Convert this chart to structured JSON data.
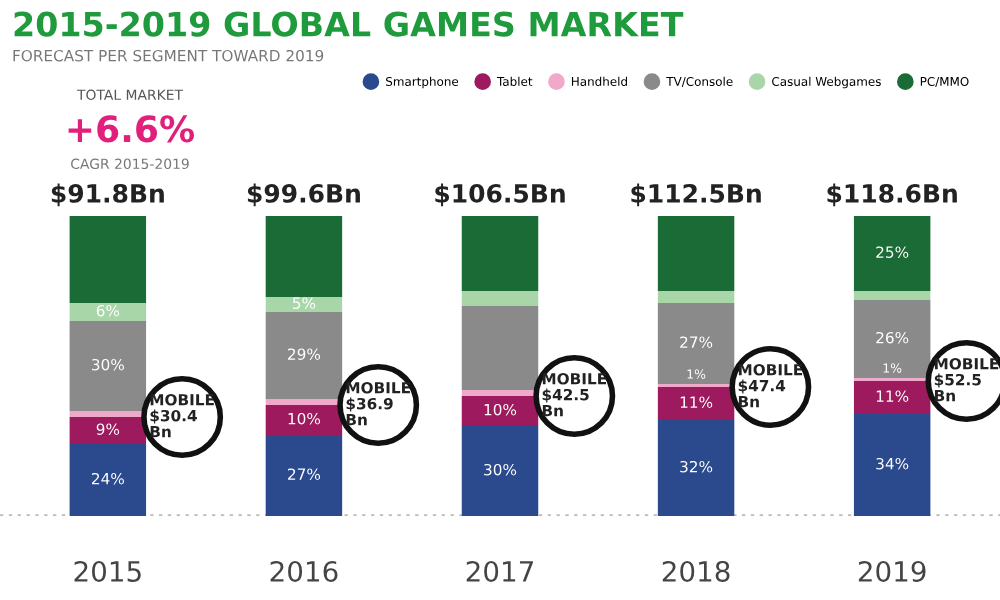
{
  "chart_data": {
    "type": "bar",
    "stacked": true,
    "title": "2015-2019 GLOBAL GAMES MARKET",
    "subtitle": "FORECAST PER SEGMENT TOWARD 2019",
    "categories": [
      "2015",
      "2016",
      "2017",
      "2018",
      "2019"
    ],
    "series": [
      {
        "name": "Smartphone",
        "color": "#2b4a8e",
        "values": [
          24,
          27,
          30,
          32,
          34
        ],
        "value_labels": [
          "24%",
          "27%",
          "30%",
          "32%",
          "34%"
        ]
      },
      {
        "name": "Tablet",
        "color": "#9e1a5e",
        "values": [
          9,
          10,
          10,
          11,
          11
        ],
        "value_labels": [
          "9%",
          "10%",
          "10%",
          "11%",
          "11%"
        ]
      },
      {
        "name": "Handheld",
        "color": "#f1a9c9",
        "values": [
          2,
          2,
          2,
          1,
          1
        ],
        "value_labels": [
          null,
          null,
          null,
          "1%",
          "1%"
        ]
      },
      {
        "name": "TV/Console",
        "color": "#8a8a8a",
        "values": [
          30,
          29,
          28,
          27,
          26
        ],
        "value_labels": [
          "30%",
          "29%",
          null,
          "27%",
          "26%"
        ]
      },
      {
        "name": "Casual Webgames",
        "color": "#a9d6a9",
        "values": [
          6,
          5,
          5,
          4,
          3
        ],
        "value_labels": [
          "6%",
          "5%",
          null,
          null,
          null
        ]
      },
      {
        "name": "PC/MMO",
        "color": "#1b6b37",
        "values": [
          29,
          27,
          25,
          25,
          25
        ],
        "value_labels": [
          null,
          null,
          null,
          null,
          "25%"
        ]
      }
    ],
    "ref_lines": [
      {
        "axis": "y",
        "value": 0,
        "color": "#bbbbbb",
        "line_style": "dotted"
      }
    ],
    "legend": "top right",
    "annotations": [
      "TOTAL MARKET",
      "+6.6%",
      "CAGR 2015-2019",
      {
        "text": "$91.8Bn",
        "x": "2015",
        "y": 100
      },
      {
        "text": "$99.6Bn",
        "x": "2016",
        "y": 100
      },
      {
        "text": "$106.5Bn",
        "x": "2017",
        "y": 100
      },
      {
        "text": "$112.5Bn",
        "x": "2018",
        "y": 100
      },
      {
        "text": "$118.6Bn",
        "x": "2019",
        "y": 100
      },
      {
        "text": "MOBILE\n$30.4\nBn",
        "x": "2015",
        "y": 33
      },
      {
        "text": "MOBILE\n$36.9\nBn",
        "x": "2016",
        "y": 37
      },
      {
        "text": "MOBILE\n$42.5\nBn",
        "x": "2017",
        "y": 40
      },
      {
        "text": "MOBILE\n$47.4\nBn",
        "x": "2018",
        "y": 43
      },
      {
        "text": "MOBILE\n$52.5\nBn",
        "x": "2019",
        "y": 45
      }
    ]
  }
}
